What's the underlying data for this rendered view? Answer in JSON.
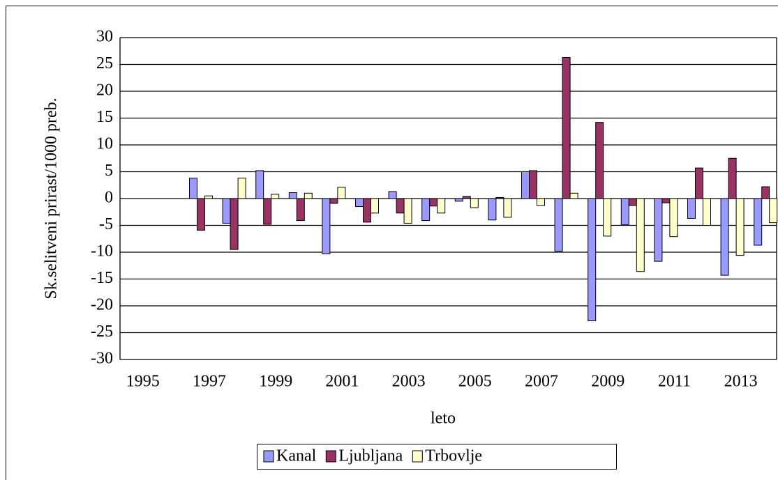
{
  "chart_data": {
    "type": "bar",
    "y_label": "Sk.selitveni prirast/1000 preb.",
    "x_label": "leto",
    "categories": [
      "1995",
      null,
      "1997",
      null,
      "1999",
      null,
      "2001",
      null,
      "2003",
      null,
      "2005",
      null,
      "2007",
      null,
      "2009",
      null,
      "2011",
      null,
      "2013",
      null
    ],
    "series": [
      {
        "name": "Kanal",
        "color": "#9999ff",
        "values": [
          null,
          null,
          3.8,
          -4.6,
          5.2,
          1.1,
          -10.3,
          -1.5,
          1.3,
          -4.1,
          -0.5,
          -4.0,
          5.0,
          -9.8,
          -22.8,
          -4.9,
          -11.7,
          -3.7,
          -14.3,
          -8.7
        ]
      },
      {
        "name": "Ljubljana",
        "color": "#993366",
        "values": [
          null,
          null,
          -5.9,
          -9.5,
          -4.8,
          -4.1,
          -0.9,
          -4.4,
          -2.7,
          -1.4,
          0.4,
          0.2,
          5.2,
          26.3,
          14.2,
          -1.3,
          -0.8,
          5.7,
          7.5,
          2.2
        ]
      },
      {
        "name": "Trbovlje",
        "color": "#ffffcc",
        "values": [
          null,
          null,
          0.5,
          3.8,
          0.8,
          1.0,
          2.1,
          -2.7,
          -4.6,
          -2.7,
          -1.7,
          -3.5,
          -1.3,
          1.0,
          -7.0,
          -13.6,
          -7.1,
          -5.0,
          -10.6,
          -4.5
        ]
      }
    ],
    "ylim": [
      -30,
      30
    ],
    "yticks": [
      -30,
      -25,
      -20,
      -15,
      -10,
      -5,
      0,
      5,
      10,
      15,
      20,
      25,
      30
    ],
    "grid": true,
    "legend": "bottom"
  }
}
